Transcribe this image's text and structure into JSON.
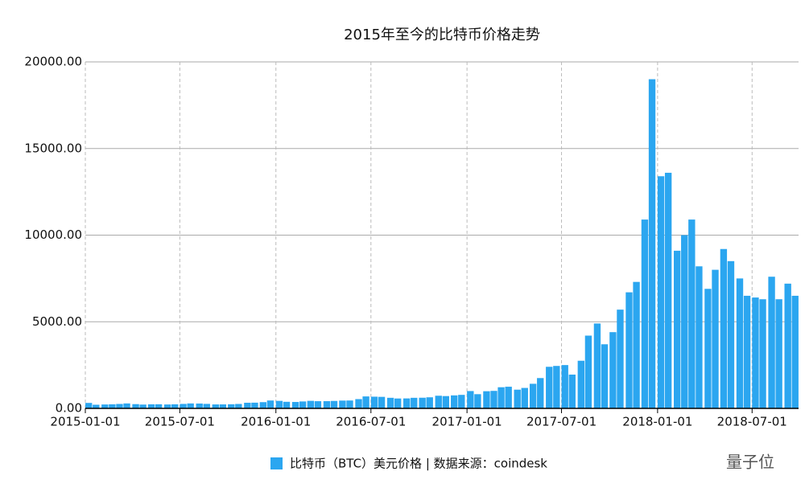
{
  "chart_data": {
    "type": "bar",
    "title": "2015年至今的比特币价格走势",
    "x": [
      "2015-01-01",
      "2015-01-15",
      "2015-02-01",
      "2015-02-15",
      "2015-03-01",
      "2015-03-15",
      "2015-04-01",
      "2015-04-15",
      "2015-05-01",
      "2015-05-15",
      "2015-06-01",
      "2015-06-15",
      "2015-07-01",
      "2015-07-15",
      "2015-08-01",
      "2015-08-15",
      "2015-09-01",
      "2015-09-15",
      "2015-10-01",
      "2015-10-15",
      "2015-11-01",
      "2015-11-15",
      "2015-12-01",
      "2015-12-15",
      "2016-01-01",
      "2016-01-15",
      "2016-02-01",
      "2016-02-15",
      "2016-03-01",
      "2016-03-15",
      "2016-04-01",
      "2016-04-15",
      "2016-05-01",
      "2016-05-15",
      "2016-06-01",
      "2016-06-15",
      "2016-07-01",
      "2016-07-15",
      "2016-08-01",
      "2016-08-15",
      "2016-09-01",
      "2016-09-15",
      "2016-10-01",
      "2016-10-15",
      "2016-11-01",
      "2016-11-15",
      "2016-12-01",
      "2016-12-15",
      "2017-01-01",
      "2017-01-15",
      "2017-02-01",
      "2017-02-15",
      "2017-03-01",
      "2017-03-15",
      "2017-04-01",
      "2017-04-15",
      "2017-05-01",
      "2017-05-15",
      "2017-06-01",
      "2017-06-15",
      "2017-07-01",
      "2017-07-15",
      "2017-08-01",
      "2017-08-15",
      "2017-09-01",
      "2017-09-15",
      "2017-10-01",
      "2017-10-15",
      "2017-11-01",
      "2017-11-15",
      "2017-12-01",
      "2017-12-15",
      "2018-01-01",
      "2018-01-15",
      "2018-02-01",
      "2018-02-15",
      "2018-03-01",
      "2018-03-15",
      "2018-04-01",
      "2018-04-15",
      "2018-05-01",
      "2018-05-15",
      "2018-06-01",
      "2018-06-15",
      "2018-07-01",
      "2018-07-15",
      "2018-08-01",
      "2018-08-15",
      "2018-09-01",
      "2018-09-15"
    ],
    "series": [
      {
        "name": "比特币（BTC）美元价格 | 数据来源：coindesk",
        "color": "#2ba6f0",
        "values": [
          315,
          210,
          225,
          235,
          255,
          285,
          245,
          220,
          235,
          237,
          225,
          235,
          258,
          285,
          280,
          260,
          228,
          230,
          237,
          255,
          325,
          330,
          360,
          455,
          434,
          380,
          370,
          400,
          435,
          415,
          417,
          430,
          450,
          455,
          535,
          690,
          675,
          665,
          610,
          570,
          575,
          610,
          615,
          640,
          730,
          710,
          750,
          780,
          1000,
          820,
          990,
          1010,
          1220,
          1250,
          1080,
          1180,
          1420,
          1750,
          2400,
          2450,
          2500,
          1950,
          2750,
          4200,
          4900,
          3700,
          4400,
          5700,
          6700,
          7300,
          10900,
          19000,
          13400,
          13600,
          9100,
          10000,
          10900,
          8200,
          6900,
          8000,
          9200,
          8500,
          7500,
          6500,
          6400,
          6300,
          7600,
          6300,
          7200,
          6500
        ]
      }
    ],
    "xlim": [
      "2015-01-01",
      "2018-09-28"
    ],
    "xticks": [
      "2015-01-01",
      "2015-07-01",
      "2016-01-01",
      "2016-07-01",
      "2017-01-01",
      "2017-07-01",
      "2018-01-01",
      "2018-07-01"
    ],
    "ylim": [
      0,
      20000
    ],
    "yticks": [
      {
        "value": 0,
        "label": "0.00"
      },
      {
        "value": 5000,
        "label": "5000.00"
      },
      {
        "value": 10000,
        "label": "10000.00"
      },
      {
        "value": 15000,
        "label": "15000.00"
      },
      {
        "value": 20000,
        "label": "20000.00"
      }
    ],
    "grid": true
  },
  "watermark": "量子位"
}
